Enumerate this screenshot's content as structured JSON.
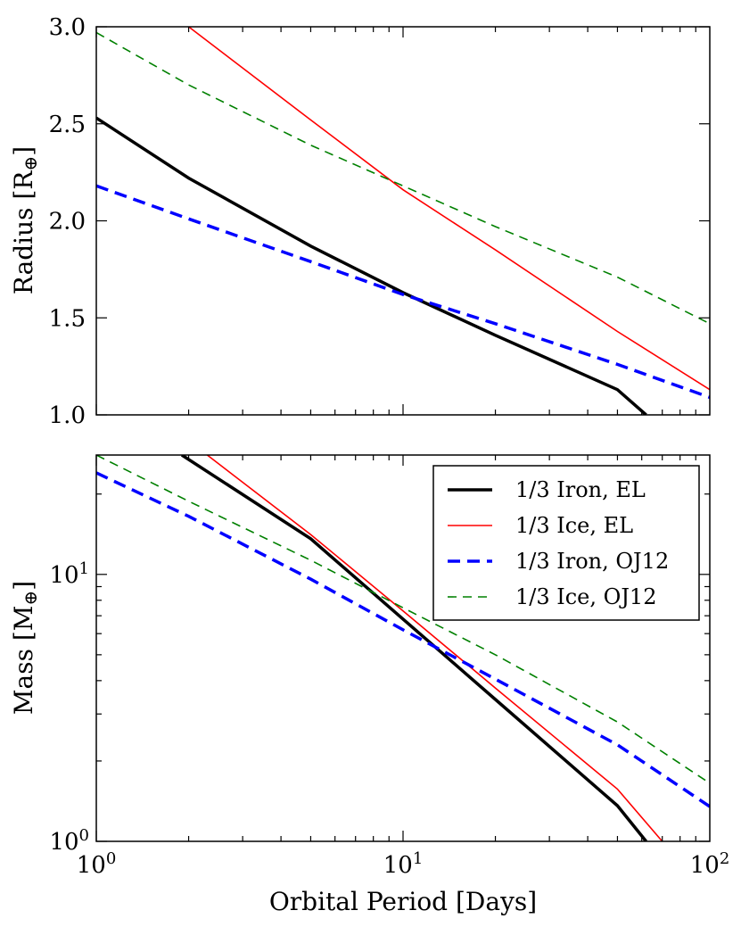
{
  "chart_data": [
    {
      "type": "line",
      "panel": "top",
      "ylabel": "Radius [R",
      "ylabel_sub": "⊕",
      "ylabel_close": "]",
      "xscale": "log",
      "xlim": [
        1,
        100
      ],
      "yscale": "linear",
      "ylim": [
        1.0,
        3.0
      ],
      "yticks": [
        1.0,
        1.5,
        2.0,
        2.5,
        3.0
      ],
      "ytick_labels": [
        "1.0",
        "1.5",
        "2.0",
        "2.5",
        "3.0"
      ],
      "grid": false,
      "series": [
        {
          "key": "iron_el",
          "x": [
            1,
            2,
            5,
            10,
            20,
            50,
            62
          ],
          "y": [
            2.53,
            2.22,
            1.87,
            1.63,
            1.41,
            1.13,
            1.0
          ]
        },
        {
          "key": "ice_el",
          "x": [
            2,
            5,
            10,
            20,
            50,
            100
          ],
          "y": [
            3.0,
            2.52,
            2.16,
            1.85,
            1.43,
            1.13
          ]
        },
        {
          "key": "iron_oj12",
          "x": [
            1,
            2,
            5,
            10,
            20,
            50,
            100
          ],
          "y": [
            2.18,
            2.01,
            1.79,
            1.62,
            1.47,
            1.26,
            1.09
          ]
        },
        {
          "key": "ice_oj12",
          "x": [
            1,
            2,
            5,
            10,
            20,
            50,
            100
          ],
          "y": [
            2.97,
            2.7,
            2.39,
            2.18,
            1.97,
            1.71,
            1.47
          ]
        }
      ]
    },
    {
      "type": "line",
      "panel": "bottom",
      "xlabel": "Orbital Period [Days]",
      "ylabel": "Mass [M",
      "ylabel_sub": "⊕",
      "ylabel_close": "]",
      "xscale": "log",
      "xlim": [
        1,
        100
      ],
      "yscale": "log",
      "ylim": [
        1,
        28
      ],
      "grid": false,
      "legend_position": "top-right",
      "series": [
        {
          "key": "iron_el",
          "x": [
            1.9,
            5,
            10,
            20,
            50,
            62
          ],
          "y": [
            28,
            13.6,
            6.8,
            3.4,
            1.36,
            1.0
          ]
        },
        {
          "key": "ice_el",
          "x": [
            2.3,
            5,
            10,
            20,
            50,
            70
          ],
          "y": [
            28,
            14.1,
            7.3,
            3.75,
            1.57,
            1.0
          ]
        },
        {
          "key": "iron_oj12",
          "x": [
            1,
            2,
            5,
            10,
            20,
            50,
            100
          ],
          "y": [
            24,
            16.5,
            9.6,
            6.2,
            4.05,
            2.3,
            1.35
          ]
        },
        {
          "key": "ice_oj12",
          "x": [
            1,
            2,
            5,
            10,
            20,
            50,
            100
          ],
          "y": [
            28,
            18.8,
            11.3,
            7.5,
            5.0,
            2.8,
            1.65
          ]
        }
      ]
    }
  ],
  "legend": [
    {
      "key": "iron_el",
      "label": "1/3 Iron, EL",
      "color": "#000000",
      "dash": "solid",
      "width": "thick"
    },
    {
      "key": "ice_el",
      "label": "1/3 Ice, EL",
      "color": "#ff0000",
      "dash": "solid",
      "width": "thin"
    },
    {
      "key": "iron_oj12",
      "label": "1/3 Iron, OJ12",
      "color": "#0000ff",
      "dash": "dashed",
      "width": "thick"
    },
    {
      "key": "ice_oj12",
      "label": "1/3 Ice, OJ12",
      "color": "#008000",
      "dash": "dashed",
      "width": "thin"
    }
  ],
  "x_ticks": [
    {
      "base": "10",
      "exp": "0",
      "value": 1
    },
    {
      "base": "10",
      "exp": "1",
      "value": 10
    },
    {
      "base": "10",
      "exp": "2",
      "value": 100
    }
  ],
  "bottom_y_ticks": [
    {
      "base": "10",
      "exp": "0",
      "value": 1
    },
    {
      "base": "10",
      "exp": "1",
      "value": 10
    }
  ]
}
